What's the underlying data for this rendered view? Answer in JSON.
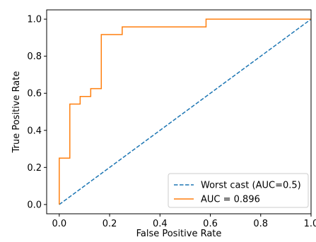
{
  "chart_data": {
    "type": "line",
    "title": "",
    "xlabel": "False Positive Rate",
    "ylabel": "True Positive Rate",
    "xlim": [
      -0.05,
      1.0
    ],
    "ylim": [
      -0.05,
      1.05
    ],
    "xticks": [
      "0.0",
      "0.2",
      "0.4",
      "0.6",
      "0.8",
      "1.0"
    ],
    "yticks": [
      "0.0",
      "0.2",
      "0.4",
      "0.6",
      "0.8",
      "1.0"
    ],
    "grid": false,
    "legend_position": "bottom-right",
    "series": [
      {
        "name": "Worst cast (AUC=0.5)",
        "style": "dashed",
        "color": "#1f77b4",
        "x": [
          0.0,
          1.0
        ],
        "y": [
          0.0,
          1.0
        ]
      },
      {
        "name": "AUC = 0.896",
        "style": "solid",
        "color": "#ff7f0e",
        "x": [
          0.0,
          0.0,
          0.042,
          0.042,
          0.083,
          0.083,
          0.125,
          0.125,
          0.167,
          0.167,
          0.25,
          0.25,
          0.583,
          0.583,
          1.0
        ],
        "y": [
          0.0,
          0.25,
          0.25,
          0.542,
          0.542,
          0.583,
          0.583,
          0.625,
          0.625,
          0.917,
          0.917,
          0.958,
          0.958,
          1.0,
          1.0
        ]
      }
    ]
  }
}
